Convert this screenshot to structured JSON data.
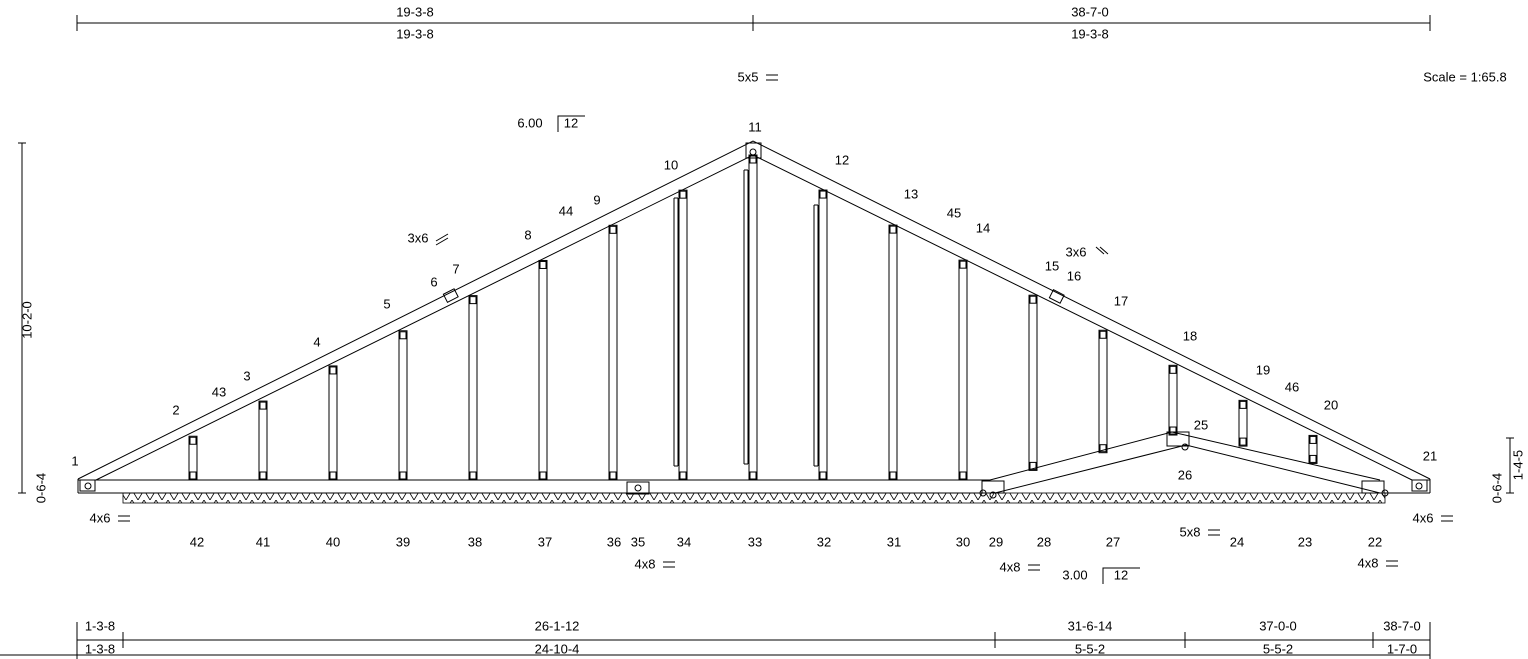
{
  "scale": "Scale = 1:65.8",
  "top_dims": {
    "row1": [
      "19-3-8",
      "38-7-0"
    ],
    "row2": [
      "19-3-8",
      "19-3-8"
    ]
  },
  "bottom_dims": {
    "row1": [
      "1-3-8",
      "26-1-12",
      "31-6-14",
      "37-0-0",
      "38-7-0"
    ],
    "row2": [
      "1-3-8",
      "24-10-4",
      "5-5-2",
      "5-5-2",
      "1-7-0"
    ]
  },
  "side_dims": {
    "height": "10-2-0",
    "left_heel": "0-6-4",
    "right_heel": "0-6-4",
    "right_height": "1-4-5"
  },
  "pitches": [
    {
      "rise": "6.00",
      "run": "12"
    },
    {
      "rise": "3.00",
      "run": "12"
    }
  ],
  "plates": [
    "5x5",
    "3x6",
    "3x6",
    "4x6",
    "4x6",
    "4x8",
    "4x8",
    "5x8",
    "4x8"
  ],
  "nodes": [
    "1",
    "2",
    "43",
    "3",
    "4",
    "5",
    "6",
    "7",
    "8",
    "44",
    "9",
    "10",
    "11",
    "12",
    "13",
    "45",
    "14",
    "15",
    "16",
    "17",
    "18",
    "19",
    "46",
    "20",
    "21",
    "25",
    "26"
  ],
  "bottom_nodes": [
    "42",
    "41",
    "40",
    "39",
    "38",
    "37",
    "36",
    "35",
    "34",
    "33",
    "32",
    "31",
    "30",
    "29",
    "28",
    "27",
    "24",
    "23",
    "22"
  ]
}
